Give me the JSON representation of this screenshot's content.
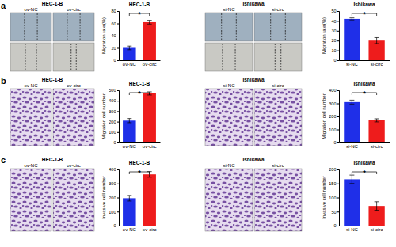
{
  "figure": {
    "panels": [
      {
        "label": "a",
        "image_groups": [
          {
            "title": "HEC-1-B",
            "conditions": [
              "ov-NC",
              "ov-circ"
            ]
          },
          {
            "title": "Ishikawa",
            "conditions": [
              "si-NC",
              "si-circ"
            ]
          }
        ]
      },
      {
        "label": "b",
        "image_groups": [
          {
            "title": "HEC-1-B",
            "conditions": [
              "ov-NC",
              "ov-circ"
            ]
          },
          {
            "title": "Ishikawa",
            "conditions": [
              "si-NC",
              "si-circ"
            ]
          }
        ]
      },
      {
        "label": "c",
        "image_groups": [
          {
            "title": "HEC-1-B",
            "conditions": [
              "ov-NC",
              "ov-circ"
            ]
          },
          {
            "title": "Ishikawa",
            "conditions": [
              "si-NC",
              "si-circ"
            ]
          }
        ]
      }
    ]
  },
  "chart_data": [
    {
      "type": "bar",
      "title": "HEC-1-B",
      "y_label": "Migration rate(%)",
      "categories": [
        "ov-NC",
        "ov-circ"
      ],
      "values": [
        20,
        62
      ],
      "errors": [
        3,
        3
      ],
      "colors": [
        "#1f2fe8",
        "#ee1c1c"
      ],
      "ylim": [
        0,
        80
      ],
      "yticks": [
        0,
        20,
        40,
        60,
        80
      ],
      "annotations": [
        "*"
      ]
    },
    {
      "type": "bar",
      "title": "Ishikawa",
      "y_label": "Migration rate(%)",
      "categories": [
        "si-NC",
        "si-circ"
      ],
      "values": [
        42,
        20
      ],
      "errors": [
        1,
        3
      ],
      "colors": [
        "#1f2fe8",
        "#ee1c1c"
      ],
      "ylim": [
        0,
        50
      ],
      "yticks": [
        0,
        10,
        20,
        30,
        40,
        50
      ],
      "annotations": [
        "*"
      ]
    },
    {
      "type": "bar",
      "title": "HEC-1-B",
      "y_label": "Migration cell number",
      "categories": [
        "ov-NC",
        "ov-circ"
      ],
      "values": [
        210,
        470
      ],
      "errors": [
        20,
        15
      ],
      "colors": [
        "#1f2fe8",
        "#ee1c1c"
      ],
      "ylim": [
        0,
        500
      ],
      "yticks": [
        0,
        100,
        200,
        300,
        400,
        500
      ],
      "annotations": [
        "*"
      ]
    },
    {
      "type": "bar",
      "title": "Ishikawa",
      "y_label": "Migration cell number",
      "categories": [
        "si-NC",
        "si-circ"
      ],
      "values": [
        310,
        170
      ],
      "errors": [
        15,
        12
      ],
      "colors": [
        "#1f2fe8",
        "#ee1c1c"
      ],
      "ylim": [
        0,
        400
      ],
      "yticks": [
        0,
        100,
        200,
        300,
        400
      ],
      "annotations": [
        "*"
      ]
    },
    {
      "type": "bar",
      "title": "HEC-1-B",
      "y_label": "Invasive cell number",
      "categories": [
        "ov-NC",
        "ov-circ"
      ],
      "values": [
        195,
        365
      ],
      "errors": [
        20,
        20
      ],
      "colors": [
        "#1f2fe8",
        "#ee1c1c"
      ],
      "ylim": [
        0,
        400
      ],
      "yticks": [
        0,
        100,
        200,
        300,
        400
      ],
      "annotations": [
        "*"
      ]
    },
    {
      "type": "bar",
      "title": "Ishikawa",
      "y_label": "Invasive cell number",
      "categories": [
        "si-NC",
        "si-circ"
      ],
      "values": [
        165,
        70
      ],
      "errors": [
        15,
        15
      ],
      "colors": [
        "#1f2fe8",
        "#ee1c1c"
      ],
      "ylim": [
        0,
        200
      ],
      "yticks": [
        0,
        50,
        100,
        150,
        200
      ],
      "annotations": [
        "*"
      ]
    }
  ]
}
